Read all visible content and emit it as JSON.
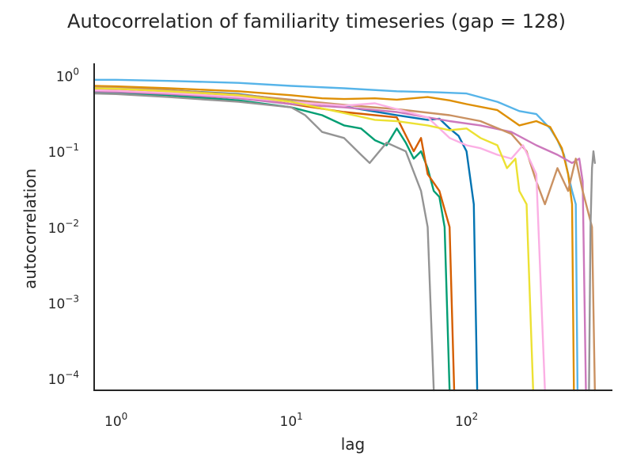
{
  "chart_data": {
    "type": "line",
    "title": "Autocorrelation of familiarity timeseries (gap = 128)",
    "xlabel": "lag",
    "ylabel": "autocorrelation",
    "xscale": "log",
    "yscale": "log",
    "xlim": [
      0.75,
      680
    ],
    "ylim": [
      7e-05,
      1.45
    ],
    "grid": false,
    "legend": "none",
    "x_ticks": [
      {
        "value": 1,
        "base": "10",
        "exp": "0"
      },
      {
        "value": 10,
        "base": "10",
        "exp": "1"
      },
      {
        "value": 100,
        "base": "10",
        "exp": "2"
      }
    ],
    "y_ticks": [
      {
        "value": 1,
        "base": "10",
        "exp": "0"
      },
      {
        "value": 0.1,
        "base": "10",
        "exp": "−1"
      },
      {
        "value": 0.01,
        "base": "10",
        "exp": "−2"
      },
      {
        "value": 0.001,
        "base": "10",
        "exp": "−3"
      },
      {
        "value": 0.0001,
        "base": "10",
        "exp": "−4"
      }
    ],
    "series": [
      {
        "color": "#56b4e9",
        "points": [
          [
            0.75,
            0.88
          ],
          [
            1,
            0.88
          ],
          [
            2,
            0.85
          ],
          [
            5,
            0.8
          ],
          [
            10,
            0.73
          ],
          [
            20,
            0.68
          ],
          [
            40,
            0.62
          ],
          [
            70,
            0.6
          ],
          [
            100,
            0.58
          ],
          [
            150,
            0.45
          ],
          [
            200,
            0.34
          ],
          [
            250,
            0.31
          ],
          [
            300,
            0.2
          ],
          [
            330,
            0.14
          ],
          [
            360,
            0.09
          ],
          [
            380,
            0.05
          ],
          [
            400,
            0.03
          ],
          [
            420,
            0.02
          ],
          [
            430,
            7e-05
          ]
        ]
      },
      {
        "color": "#de8f05",
        "points": [
          [
            0.75,
            0.73
          ],
          [
            1,
            0.72
          ],
          [
            2,
            0.68
          ],
          [
            5,
            0.62
          ],
          [
            10,
            0.55
          ],
          [
            15,
            0.5
          ],
          [
            20,
            0.49
          ],
          [
            30,
            0.5
          ],
          [
            40,
            0.48
          ],
          [
            60,
            0.52
          ],
          [
            80,
            0.47
          ],
          [
            100,
            0.42
          ],
          [
            150,
            0.35
          ],
          [
            200,
            0.22
          ],
          [
            250,
            0.25
          ],
          [
            300,
            0.21
          ],
          [
            350,
            0.11
          ],
          [
            380,
            0.05
          ],
          [
            400,
            0.02
          ],
          [
            410,
            7e-05
          ]
        ]
      },
      {
        "color": "#0173b2",
        "points": [
          [
            0.75,
            0.69
          ],
          [
            1,
            0.68
          ],
          [
            2,
            0.64
          ],
          [
            5,
            0.57
          ],
          [
            10,
            0.47
          ],
          [
            20,
            0.39
          ],
          [
            40,
            0.3
          ],
          [
            60,
            0.26
          ],
          [
            70,
            0.27
          ],
          [
            80,
            0.2
          ],
          [
            90,
            0.16
          ],
          [
            100,
            0.1
          ],
          [
            110,
            0.02
          ],
          [
            115,
            7e-05
          ]
        ]
      },
      {
        "color": "#029e73",
        "points": [
          [
            0.75,
            0.6
          ],
          [
            1,
            0.59
          ],
          [
            2,
            0.55
          ],
          [
            5,
            0.47
          ],
          [
            10,
            0.38
          ],
          [
            15,
            0.3
          ],
          [
            20,
            0.22
          ],
          [
            25,
            0.2
          ],
          [
            30,
            0.14
          ],
          [
            35,
            0.12
          ],
          [
            40,
            0.2
          ],
          [
            45,
            0.13
          ],
          [
            50,
            0.08
          ],
          [
            55,
            0.1
          ],
          [
            60,
            0.06
          ],
          [
            65,
            0.03
          ],
          [
            70,
            0.025
          ],
          [
            75,
            0.01
          ],
          [
            80,
            7e-05
          ]
        ]
      },
      {
        "color": "#d55e00",
        "points": [
          [
            0.75,
            0.66
          ],
          [
            1,
            0.65
          ],
          [
            2,
            0.6
          ],
          [
            5,
            0.52
          ],
          [
            10,
            0.42
          ],
          [
            20,
            0.33
          ],
          [
            40,
            0.28
          ],
          [
            50,
            0.1
          ],
          [
            55,
            0.15
          ],
          [
            60,
            0.05
          ],
          [
            70,
            0.03
          ],
          [
            80,
            0.01
          ],
          [
            85,
            7e-05
          ]
        ]
      },
      {
        "color": "#cc78bc",
        "points": [
          [
            0.75,
            0.62
          ],
          [
            1,
            0.61
          ],
          [
            2,
            0.57
          ],
          [
            5,
            0.5
          ],
          [
            10,
            0.42
          ],
          [
            20,
            0.38
          ],
          [
            40,
            0.33
          ],
          [
            80,
            0.25
          ],
          [
            120,
            0.22
          ],
          [
            180,
            0.18
          ],
          [
            250,
            0.12
          ],
          [
            330,
            0.09
          ],
          [
            400,
            0.07
          ],
          [
            440,
            0.08
          ],
          [
            460,
            0.04
          ],
          [
            480,
            7e-05
          ]
        ]
      },
      {
        "color": "#ca9161",
        "points": [
          [
            0.75,
            0.7
          ],
          [
            1,
            0.69
          ],
          [
            2,
            0.64
          ],
          [
            5,
            0.56
          ],
          [
            10,
            0.48
          ],
          [
            20,
            0.41
          ],
          [
            40,
            0.36
          ],
          [
            80,
            0.3
          ],
          [
            120,
            0.25
          ],
          [
            180,
            0.17
          ],
          [
            220,
            0.1
          ],
          [
            250,
            0.04
          ],
          [
            280,
            0.02
          ],
          [
            330,
            0.06
          ],
          [
            380,
            0.03
          ],
          [
            420,
            0.08
          ],
          [
            460,
            0.03
          ],
          [
            520,
            0.01
          ],
          [
            540,
            7e-05
          ]
        ]
      },
      {
        "color": "#fbafe4",
        "points": [
          [
            0.75,
            0.64
          ],
          [
            1,
            0.63
          ],
          [
            2,
            0.59
          ],
          [
            5,
            0.52
          ],
          [
            10,
            0.45
          ],
          [
            20,
            0.4
          ],
          [
            30,
            0.43
          ],
          [
            40,
            0.36
          ],
          [
            60,
            0.28
          ],
          [
            80,
            0.15
          ],
          [
            100,
            0.12
          ],
          [
            120,
            0.11
          ],
          [
            150,
            0.09
          ],
          [
            180,
            0.08
          ],
          [
            210,
            0.12
          ],
          [
            250,
            0.05
          ],
          [
            280,
            7e-05
          ]
        ]
      },
      {
        "color": "#949494",
        "points": [
          [
            0.75,
            0.58
          ],
          [
            1,
            0.57
          ],
          [
            2,
            0.52
          ],
          [
            5,
            0.45
          ],
          [
            10,
            0.38
          ],
          [
            12,
            0.3
          ],
          [
            15,
            0.18
          ],
          [
            20,
            0.15
          ],
          [
            25,
            0.09
          ],
          [
            28,
            0.07
          ],
          [
            35,
            0.13
          ],
          [
            45,
            0.1
          ],
          [
            55,
            0.03
          ],
          [
            60,
            0.01
          ],
          [
            65,
            7e-05
          ]
        ]
      },
      {
        "color": "#ece133",
        "points": [
          [
            0.75,
            0.68
          ],
          [
            1,
            0.67
          ],
          [
            2,
            0.62
          ],
          [
            5,
            0.55
          ],
          [
            10,
            0.45
          ],
          [
            20,
            0.32
          ],
          [
            30,
            0.26
          ],
          [
            40,
            0.25
          ],
          [
            60,
            0.22
          ],
          [
            80,
            0.19
          ],
          [
            100,
            0.2
          ],
          [
            120,
            0.15
          ],
          [
            150,
            0.12
          ],
          [
            170,
            0.06
          ],
          [
            190,
            0.08
          ],
          [
            200,
            0.03
          ],
          [
            220,
            0.02
          ],
          [
            240,
            7e-05
          ]
        ]
      },
      {
        "color": "#949494",
        "points": [
          [
            500,
            7e-05
          ],
          [
            510,
            0.01
          ],
          [
            520,
            0.06
          ],
          [
            530,
            0.1
          ],
          [
            540,
            0.07
          ]
        ]
      }
    ]
  }
}
